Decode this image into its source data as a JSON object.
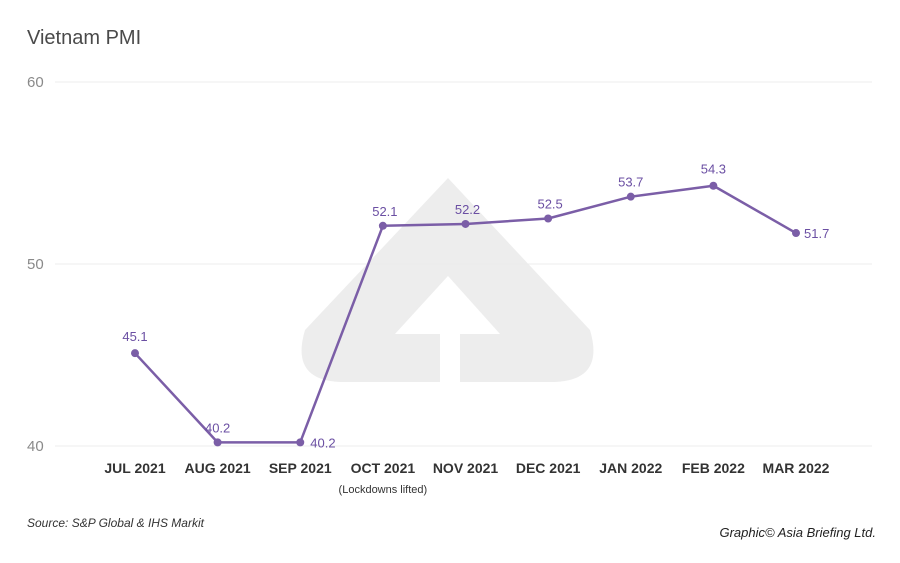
{
  "chart_data": {
    "type": "line",
    "title": "Vietnam PMI",
    "categories": [
      "JUL 2021",
      "AUG 2021",
      "SEP 2021",
      "OCT 2021",
      "NOV 2021",
      "DEC 2021",
      "JAN 2022",
      "FEB 2022",
      "MAR 2022"
    ],
    "values": [
      45.1,
      40.2,
      40.2,
      52.1,
      52.2,
      52.5,
      53.7,
      54.3,
      51.7
    ],
    "data_labels": [
      "45.1",
      "40.2",
      "40.2",
      "52.1",
      "52.2",
      "52.5",
      "53.7",
      "54.3",
      "51.7"
    ],
    "y_ticks": [
      "40",
      "50",
      "60"
    ],
    "ylim": [
      40,
      60
    ],
    "grid": true,
    "line_color": "#7b5ea7",
    "annotation": {
      "category": "OCT 2021",
      "text": "(Lockdowns lifted)"
    },
    "source": "Source: S&P Global & IHS Markit",
    "credit": "Graphic© Asia Briefing Ltd."
  }
}
